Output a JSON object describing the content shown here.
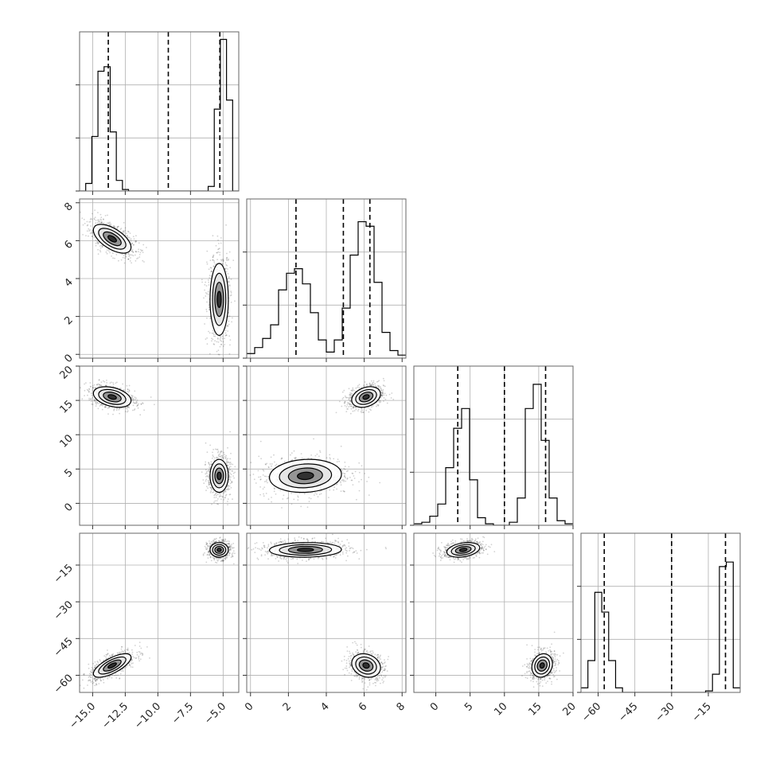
{
  "chart_data": {
    "type": "corner",
    "grid": true,
    "colors": {
      "line": "#000000",
      "grid": "#b0b0b0",
      "points": "#000000",
      "fill_dark": "#111111"
    },
    "params": [
      {
        "ticks": [
          -15.0,
          -12.5,
          -10.0,
          -7.5,
          -5.0
        ],
        "tick_labels": [
          "−15.0",
          "−12.5",
          "−10.0",
          "−7.5",
          "−5.0"
        ],
        "range": [
          -16.0,
          -3.8
        ],
        "quantiles": [
          -13.8,
          -9.2,
          -5.25
        ],
        "histogram": [
          0,
          0.05,
          0.36,
          0.79,
          0.82,
          0.39,
          0.07,
          0.01,
          0,
          0,
          0,
          0,
          0,
          0,
          0,
          0,
          0,
          0,
          0,
          0,
          0,
          0.03,
          0.54,
          1.0,
          0.6,
          0
        ]
      },
      {
        "ticks": [
          0,
          2,
          4,
          6,
          8
        ],
        "tick_labels": [
          "0",
          "2",
          "4",
          "6",
          "8"
        ],
        "range": [
          -0.2,
          8.2
        ],
        "quantiles": [
          2.4,
          4.9,
          6.3
        ],
        "histogram": [
          0.03,
          0.07,
          0.13,
          0.22,
          0.45,
          0.56,
          0.59,
          0.49,
          0.3,
          0.12,
          0.04,
          0.12,
          0.33,
          0.68,
          0.9,
          0.87,
          0.5,
          0.17,
          0.05,
          0.02
        ]
      },
      {
        "ticks": [
          0,
          5,
          10,
          15,
          20
        ],
        "tick_labels": [
          "0",
          "5",
          "10",
          "15",
          "20"
        ],
        "range": [
          -3.2,
          20.0
        ],
        "quantiles": [
          3.2,
          10.0,
          16.0
        ],
        "histogram": [
          0.01,
          0.02,
          0.06,
          0.14,
          0.38,
          0.64,
          0.77,
          0.3,
          0.05,
          0.01,
          0,
          0,
          0.02,
          0.18,
          0.77,
          0.93,
          0.56,
          0.18,
          0.03,
          0.01
        ]
      },
      {
        "ticks": [
          -60,
          -45,
          -30,
          -15
        ],
        "tick_labels": [
          "−60",
          "−45",
          "−30",
          "−15"
        ],
        "range": [
          -67.0,
          -2.0
        ],
        "quantiles": [
          -57.5,
          -30.0,
          -8.0
        ],
        "histogram": [
          0.03,
          0.21,
          0.66,
          0.53,
          0.21,
          0.03,
          0,
          0,
          0,
          0,
          0,
          0,
          0,
          0,
          0,
          0,
          0,
          0,
          0.01,
          0.12,
          0.83,
          0.86,
          0.03
        ]
      }
    ],
    "hist_ymax": 1.05,
    "hist_yticks": [
      0.0,
      0.35,
      0.7
    ],
    "modes": [
      [
        -13.5,
        6.1,
        15.5,
        -56.0
      ],
      [
        -5.3,
        2.9,
        4.0,
        -8.8
      ]
    ],
    "mode_sd": [
      [
        0.72,
        0.38,
        0.75,
        2.4
      ],
      [
        0.35,
        0.95,
        1.2,
        1.5
      ]
    ],
    "mode_rho": [
      {
        "0-1": -0.6,
        "0-2": -0.35,
        "0-3": 0.7,
        "1-2": 0.3,
        "1-3": -0.2,
        "2-3": 0.15
      },
      {
        "0-1": 0.0,
        "0-2": 0.0,
        "0-3": 0.0,
        "1-2": 0.1,
        "1-3": 0.05,
        "2-3": 0.3
      }
    ]
  }
}
